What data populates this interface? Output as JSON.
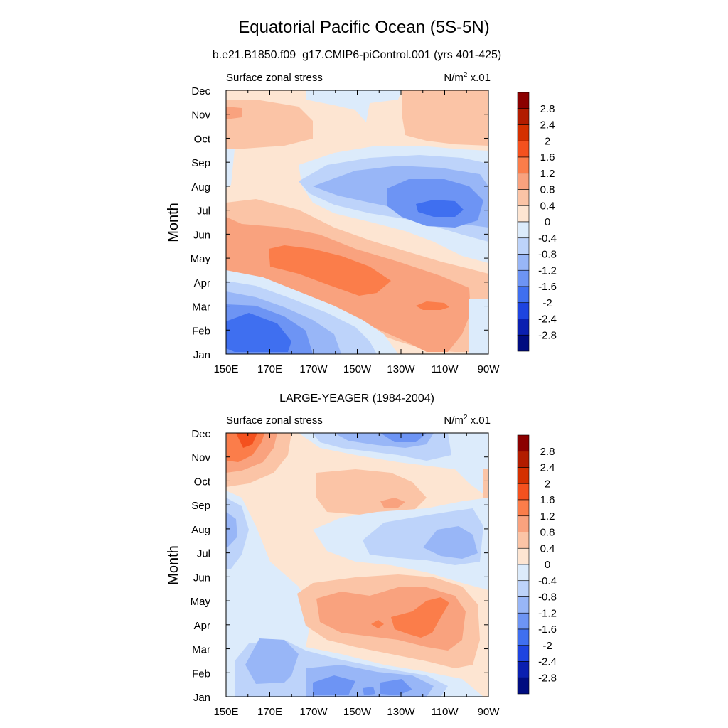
{
  "figure": {
    "title": "Equatorial Pacific Ocean (5S-5N)",
    "colorbar_levels": [
      "2.8",
      "2.4",
      "2",
      "1.6",
      "1.2",
      "0.8",
      "0.4",
      "0",
      "-0.4",
      "-0.8",
      "-1.2",
      "-1.6",
      "-2",
      "-2.4",
      "-2.8"
    ],
    "colorbar_colors": [
      "#8b0000",
      "#b21c00",
      "#d43000",
      "#f4511e",
      "#fb7d4a",
      "#f9a27e",
      "#fbc4a6",
      "#fde5d2",
      "#dcebfb",
      "#bdd3fa",
      "#98b6f7",
      "#6d94f4",
      "#3f6ff0",
      "#1e44e0",
      "#0a1fb0",
      "#000c80"
    ]
  },
  "chart_data": [
    {
      "type": "heatmap",
      "subtitle": "b.e21.B1850.f09_g17.CMIP6-piControl.001 (yrs 401-425)",
      "left_label": "Surface zonal stress",
      "units_base": "N/m",
      "units_sup": "2",
      "units_scale": "x.01",
      "ylabel": "Month",
      "x_tick_labels": [
        "150E",
        "170E",
        "170W",
        "150W",
        "130W",
        "110W",
        "90W"
      ],
      "y_tick_labels": [
        "Jan",
        "Feb",
        "Mar",
        "Apr",
        "May",
        "Jun",
        "Jul",
        "Aug",
        "Sep",
        "Oct",
        "Nov",
        "Dec"
      ],
      "xlim": [
        "150E",
        "90W"
      ],
      "ylim": [
        "Jan",
        "Dec"
      ],
      "regions": [
        {
          "label": "easterly anomaly, Jan-Feb, 150E-170W",
          "value": -1.6
        },
        {
          "label": "westerly anomaly, Apr-May, 170W-130W",
          "value": 1.4
        },
        {
          "label": "westerly anomaly, Mar, 125W-110W",
          "value": 1.4
        },
        {
          "label": "easterly anomaly, Jul-Aug, 130W-100W",
          "value": -1.8
        },
        {
          "label": "westerly anomaly, Oct-Dec, 130W-90W",
          "value": 0.6
        },
        {
          "label": "westerly anomaly, Oct-Nov, 150E-170E",
          "value": 0.6
        }
      ]
    },
    {
      "type": "heatmap",
      "subtitle": "LARGE-YEAGER (1984-2004)",
      "left_label": "Surface zonal stress",
      "units_base": "N/m",
      "units_sup": "2",
      "units_scale": "x.01",
      "ylabel": "Month",
      "x_tick_labels": [
        "150E",
        "170E",
        "170W",
        "150W",
        "130W",
        "110W",
        "90W"
      ],
      "y_tick_labels": [
        "Jan",
        "Feb",
        "Mar",
        "Apr",
        "May",
        "Jun",
        "Jul",
        "Aug",
        "Sep",
        "Oct",
        "Nov",
        "Dec"
      ],
      "xlim": [
        "150E",
        "90W"
      ],
      "ylim": [
        "Jan",
        "Dec"
      ],
      "regions": [
        {
          "label": "westerly anomaly, Nov-Dec, 150E-160E",
          "value": 1.6
        },
        {
          "label": "easterly anomaly, Jan-Feb, 165E-110W",
          "value": -0.8
        },
        {
          "label": "westerly anomaly, Mar-May, 170W-110W",
          "value": 1.2
        },
        {
          "label": "easterly anomaly, Jul-Aug, 140W-100W",
          "value": -0.8
        },
        {
          "label": "westerly anomaly, Sep-Oct, 160W-130W",
          "value": 0.6
        },
        {
          "label": "easterly anomaly, Dec, 170W-110W",
          "value": -1.0
        }
      ]
    }
  ]
}
